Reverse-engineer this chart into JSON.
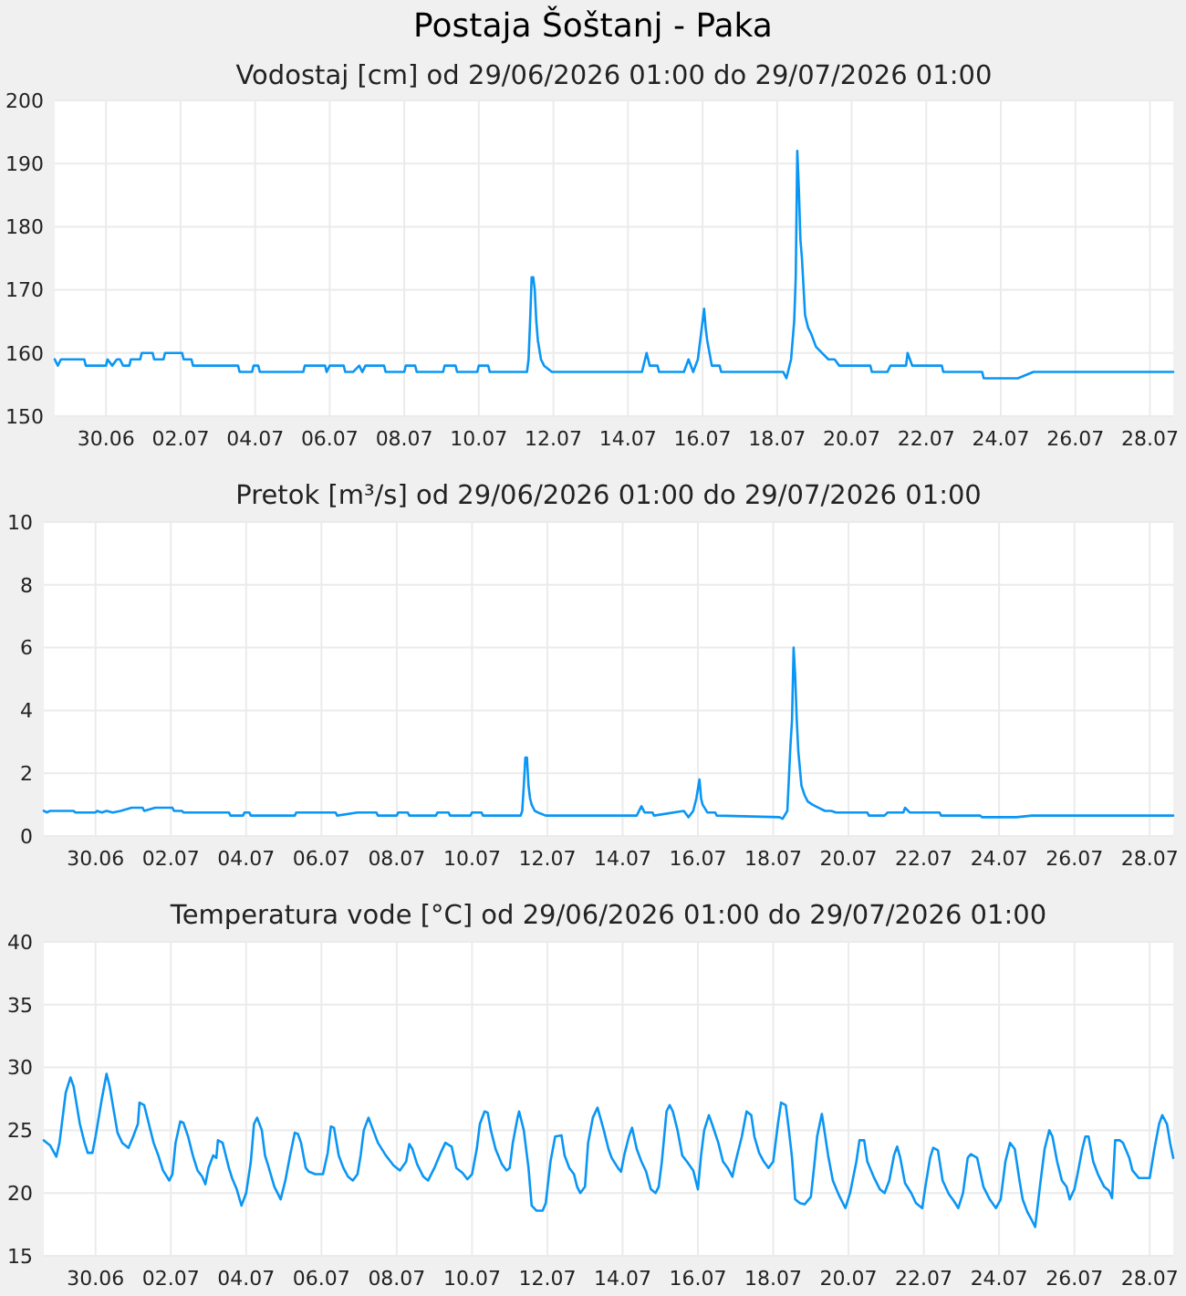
{
  "chart_data": [
    {
      "type": "line",
      "title": "Postaja Šoštanj - Paka",
      "subtitle": "Vodostaj [cm] od 29/06/2026 01:00 do 29/07/2026 01:00",
      "grid": true,
      "xlim": [
        "2026-06-29T01:00",
        "2026-07-29T01:00"
      ],
      "xticks": [
        {
          "value": "2026-06-30T10:00",
          "label": "30.06"
        },
        {
          "value": "2026-07-02T10:00",
          "label": "02.07"
        },
        {
          "value": "2026-07-04T10:00",
          "label": "04.07"
        },
        {
          "value": "2026-07-06T10:00",
          "label": "06.07"
        },
        {
          "value": "2026-07-08T10:00",
          "label": "08.07"
        },
        {
          "value": "2026-07-10T10:00",
          "label": "10.07"
        },
        {
          "value": "2026-07-12T10:00",
          "label": "12.07"
        },
        {
          "value": "2026-07-14T10:00",
          "label": "14.07"
        },
        {
          "value": "2026-07-16T10:00",
          "label": "16.07"
        },
        {
          "value": "2026-07-18T10:00",
          "label": "18.07"
        },
        {
          "value": "2026-07-20T10:00",
          "label": "20.07"
        },
        {
          "value": "2026-07-22T10:00",
          "label": "22.07"
        },
        {
          "value": "2026-07-24T10:00",
          "label": "24.07"
        },
        {
          "value": "2026-07-26T10:00",
          "label": "26.07"
        },
        {
          "value": "2026-07-28T10:00",
          "label": "28.07"
        }
      ],
      "ylim": [
        150,
        200
      ],
      "yticks": [
        150,
        160,
        170,
        180,
        190,
        200
      ],
      "x": [
        "2026-06-29T01:00",
        "2026-06-29T03:00",
        "2026-06-29T05:00",
        "2026-06-29T20:00",
        "2026-06-29T21:00",
        "2026-06-30T10:00",
        "2026-06-30T11:00",
        "2026-06-30T14:00",
        "2026-06-30T17:00",
        "2026-06-30T19:00",
        "2026-06-30T21:00",
        "2026-07-01T01:00",
        "2026-07-01T02:00",
        "2026-07-01T08:00",
        "2026-07-01T09:00",
        "2026-07-01T16:00",
        "2026-07-01T17:00",
        "2026-07-01T23:00",
        "2026-07-02T00:00",
        "2026-07-02T11:00",
        "2026-07-02T12:00",
        "2026-07-02T17:00",
        "2026-07-02T18:00",
        "2026-07-03T23:00",
        "2026-07-04T00:00",
        "2026-07-04T08:00",
        "2026-07-04T09:00",
        "2026-07-04T12:00",
        "2026-07-04T13:00",
        "2026-07-05T17:00",
        "2026-07-05T18:00",
        "2026-07-06T07:00",
        "2026-07-06T08:00",
        "2026-07-06T10:00",
        "2026-07-06T19:00",
        "2026-07-06T20:00",
        "2026-07-07T01:00",
        "2026-07-07T05:00",
        "2026-07-07T07:00",
        "2026-07-07T09:00",
        "2026-07-07T21:00",
        "2026-07-07T22:00",
        "2026-07-08T10:00",
        "2026-07-08T11:00",
        "2026-07-08T17:00",
        "2026-07-08T18:00",
        "2026-07-09T11:00",
        "2026-07-09T12:00",
        "2026-07-09T19:00",
        "2026-07-09T20:00",
        "2026-07-10T09:00",
        "2026-07-10T10:00",
        "2026-07-10T16:00",
        "2026-07-10T17:00",
        "2026-07-11T17:00",
        "2026-07-11T18:00",
        "2026-07-11T19:00",
        "2026-07-11T20:00",
        "2026-07-11T21:00",
        "2026-07-11T22:00",
        "2026-07-11T23:00",
        "2026-07-12T00:00",
        "2026-07-12T02:00",
        "2026-07-12T04:00",
        "2026-07-12T09:00",
        "2026-07-14T19:00",
        "2026-07-14T20:00",
        "2026-07-14T22:00",
        "2026-07-15T00:00",
        "2026-07-15T05:00",
        "2026-07-15T06:00",
        "2026-07-15T22:00",
        "2026-07-16T01:00",
        "2026-07-16T04:00",
        "2026-07-16T07:00",
        "2026-07-16T09:00",
        "2026-07-16T11:00",
        "2026-07-16T12:00",
        "2026-07-16T13:00",
        "2026-07-16T16:00",
        "2026-07-16T21:00",
        "2026-07-16T22:00",
        "2026-07-18T14:00",
        "2026-07-18T16:00",
        "2026-07-18T19:00",
        "2026-07-18T21:00",
        "2026-07-18T22:00",
        "2026-07-18T23:00",
        "2026-07-19T00:00",
        "2026-07-19T01:00",
        "2026-07-19T02:00",
        "2026-07-19T04:00",
        "2026-07-19T06:00",
        "2026-07-19T08:00",
        "2026-07-19T11:00",
        "2026-07-19T15:00",
        "2026-07-19T19:00",
        "2026-07-19T23:00",
        "2026-07-20T02:00",
        "2026-07-20T22:00",
        "2026-07-20T23:00",
        "2026-07-21T09:00",
        "2026-07-21T11:00",
        "2026-07-21T21:00",
        "2026-07-21T22:00",
        "2026-07-22T01:00",
        "2026-07-22T20:00",
        "2026-07-22T21:00",
        "2026-07-23T22:00",
        "2026-07-23T23:00",
        "2026-07-24T21:00",
        "2026-07-25T07:00",
        "2026-07-29T01:00"
      ],
      "series": [
        {
          "color": "#0a96f5",
          "values": [
            159,
            158,
            159,
            159,
            158,
            158,
            159,
            158,
            159,
            159,
            158,
            158,
            159,
            159,
            160,
            160,
            159,
            159,
            160,
            160,
            159,
            159,
            158,
            158,
            157,
            157,
            158,
            158,
            157,
            157,
            158,
            158,
            157,
            158,
            158,
            157,
            157,
            158,
            157,
            158,
            158,
            157,
            157,
            158,
            158,
            157,
            157,
            158,
            158,
            157,
            157,
            158,
            158,
            157,
            157,
            159,
            165,
            172,
            172,
            170,
            165,
            162,
            159,
            158,
            157,
            157,
            158,
            160,
            158,
            158,
            157,
            157,
            159,
            157,
            159,
            163,
            167,
            164,
            162,
            158,
            158,
            157,
            157,
            156,
            159,
            165,
            172,
            192,
            186,
            178,
            175,
            166,
            164,
            163,
            161,
            160,
            159,
            159,
            158,
            158,
            157,
            157,
            158,
            158,
            160,
            158,
            158,
            157,
            157,
            156,
            156,
            157,
            157
          ]
        }
      ]
    },
    {
      "type": "line",
      "title": "Pretok [m³/s] od 29/06/2026 01:00 do 29/07/2026 01:00",
      "grid": true,
      "xlim": [
        "2026-06-29T01:00",
        "2026-07-29T01:00"
      ],
      "xticks": [
        {
          "value": "2026-06-30T10:00",
          "label": "30.06"
        },
        {
          "value": "2026-07-02T10:00",
          "label": "02.07"
        },
        {
          "value": "2026-07-04T10:00",
          "label": "04.07"
        },
        {
          "value": "2026-07-06T10:00",
          "label": "06.07"
        },
        {
          "value": "2026-07-08T10:00",
          "label": "08.07"
        },
        {
          "value": "2026-07-10T10:00",
          "label": "10.07"
        },
        {
          "value": "2026-07-12T10:00",
          "label": "12.07"
        },
        {
          "value": "2026-07-14T10:00",
          "label": "14.07"
        },
        {
          "value": "2026-07-16T10:00",
          "label": "16.07"
        },
        {
          "value": "2026-07-18T10:00",
          "label": "18.07"
        },
        {
          "value": "2026-07-20T10:00",
          "label": "20.07"
        },
        {
          "value": "2026-07-22T10:00",
          "label": "22.07"
        },
        {
          "value": "2026-07-24T10:00",
          "label": "24.07"
        },
        {
          "value": "2026-07-26T10:00",
          "label": "26.07"
        },
        {
          "value": "2026-07-28T10:00",
          "label": "28.07"
        }
      ],
      "ylim": [
        0,
        10
      ],
      "yticks": [
        0,
        2,
        4,
        6,
        8,
        10
      ],
      "x": [
        "2026-06-29T01:00",
        "2026-06-29T03:00",
        "2026-06-29T05:00",
        "2026-06-29T20:00",
        "2026-06-29T21:00",
        "2026-06-30T10:00",
        "2026-06-30T11:00",
        "2026-06-30T14:00",
        "2026-06-30T17:00",
        "2026-06-30T21:00",
        "2026-07-01T02:00",
        "2026-07-01T09:00",
        "2026-07-01T16:00",
        "2026-07-01T17:00",
        "2026-07-02T00:00",
        "2026-07-02T11:00",
        "2026-07-02T12:00",
        "2026-07-02T17:00",
        "2026-07-02T18:00",
        "2026-07-03T23:00",
        "2026-07-04T00:00",
        "2026-07-04T08:00",
        "2026-07-04T09:00",
        "2026-07-04T12:00",
        "2026-07-04T13:00",
        "2026-07-05T17:00",
        "2026-07-05T18:00",
        "2026-07-06T19:00",
        "2026-07-06T20:00",
        "2026-07-07T09:00",
        "2026-07-07T21:00",
        "2026-07-07T22:00",
        "2026-07-08T10:00",
        "2026-07-08T11:00",
        "2026-07-08T17:00",
        "2026-07-08T18:00",
        "2026-07-09T11:00",
        "2026-07-09T12:00",
        "2026-07-09T19:00",
        "2026-07-09T20:00",
        "2026-07-10T09:00",
        "2026-07-10T10:00",
        "2026-07-10T16:00",
        "2026-07-10T17:00",
        "2026-07-11T17:00",
        "2026-07-11T18:00",
        "2026-07-11T19:00",
        "2026-07-11T20:00",
        "2026-07-11T21:00",
        "2026-07-11T22:00",
        "2026-07-11T23:00",
        "2026-07-12T00:00",
        "2026-07-12T02:00",
        "2026-07-12T04:00",
        "2026-07-12T09:00",
        "2026-07-14T19:00",
        "2026-07-14T22:00",
        "2026-07-15T00:00",
        "2026-07-15T05:00",
        "2026-07-15T06:00",
        "2026-07-16T01:00",
        "2026-07-16T04:00",
        "2026-07-16T07:00",
        "2026-07-16T09:00",
        "2026-07-16T11:00",
        "2026-07-16T12:00",
        "2026-07-16T13:00",
        "2026-07-16T16:00",
        "2026-07-16T21:00",
        "2026-07-16T22:00",
        "2026-07-18T14:00",
        "2026-07-18T16:00",
        "2026-07-18T19:00",
        "2026-07-18T21:00",
        "2026-07-18T22:00",
        "2026-07-18T23:00",
        "2026-07-19T00:00",
        "2026-07-19T01:00",
        "2026-07-19T02:00",
        "2026-07-19T04:00",
        "2026-07-19T06:00",
        "2026-07-19T08:00",
        "2026-07-19T11:00",
        "2026-07-19T15:00",
        "2026-07-19T19:00",
        "2026-07-19T23:00",
        "2026-07-20T02:00",
        "2026-07-20T22:00",
        "2026-07-20T23:00",
        "2026-07-21T09:00",
        "2026-07-21T11:00",
        "2026-07-21T21:00",
        "2026-07-21T22:00",
        "2026-07-22T01:00",
        "2026-07-22T20:00",
        "2026-07-22T21:00",
        "2026-07-23T22:00",
        "2026-07-23T23:00",
        "2026-07-24T21:00",
        "2026-07-25T07:00",
        "2026-07-29T01:00"
      ],
      "series": [
        {
          "color": "#0a96f5",
          "values": [
            0.8,
            0.75,
            0.8,
            0.8,
            0.75,
            0.75,
            0.8,
            0.75,
            0.8,
            0.75,
            0.8,
            0.9,
            0.9,
            0.8,
            0.9,
            0.9,
            0.8,
            0.8,
            0.75,
            0.75,
            0.65,
            0.65,
            0.75,
            0.75,
            0.65,
            0.65,
            0.75,
            0.75,
            0.65,
            0.75,
            0.75,
            0.65,
            0.65,
            0.75,
            0.75,
            0.65,
            0.65,
            0.75,
            0.75,
            0.65,
            0.65,
            0.75,
            0.75,
            0.65,
            0.65,
            0.8,
            1.6,
            2.5,
            2.5,
            1.6,
            1.2,
            1.0,
            0.8,
            0.75,
            0.65,
            0.65,
            0.95,
            0.75,
            0.75,
            0.65,
            0.8,
            0.6,
            0.8,
            1.2,
            1.8,
            1.2,
            1.0,
            0.75,
            0.75,
            0.65,
            0.6,
            0.55,
            0.8,
            2.9,
            3.7,
            6.0,
            5.1,
            3.7,
            2.7,
            1.6,
            1.3,
            1.1,
            1.0,
            0.9,
            0.8,
            0.8,
            0.75,
            0.75,
            0.65,
            0.65,
            0.75,
            0.75,
            0.9,
            0.75,
            0.75,
            0.65,
            0.65,
            0.6,
            0.6,
            0.65,
            0.65
          ]
        }
      ]
    },
    {
      "type": "line",
      "title": "Temperatura vode [°C] od 29/06/2026 01:00 do 29/07/2026 01:00",
      "grid": true,
      "xlim": [
        "2026-06-29T01:00",
        "2026-07-29T01:00"
      ],
      "xticks": [
        {
          "value": "2026-06-30T10:00",
          "label": "30.06"
        },
        {
          "value": "2026-07-02T10:00",
          "label": "02.07"
        },
        {
          "value": "2026-07-04T10:00",
          "label": "04.07"
        },
        {
          "value": "2026-07-06T10:00",
          "label": "06.07"
        },
        {
          "value": "2026-07-08T10:00",
          "label": "08.07"
        },
        {
          "value": "2026-07-10T10:00",
          "label": "10.07"
        },
        {
          "value": "2026-07-12T10:00",
          "label": "12.07"
        },
        {
          "value": "2026-07-14T10:00",
          "label": "14.07"
        },
        {
          "value": "2026-07-16T10:00",
          "label": "16.07"
        },
        {
          "value": "2026-07-18T10:00",
          "label": "18.07"
        },
        {
          "value": "2026-07-20T10:00",
          "label": "20.07"
        },
        {
          "value": "2026-07-22T10:00",
          "label": "22.07"
        },
        {
          "value": "2026-07-24T10:00",
          "label": "24.07"
        },
        {
          "value": "2026-07-26T10:00",
          "label": "26.07"
        },
        {
          "value": "2026-07-28T10:00",
          "label": "28.07"
        }
      ],
      "ylim": [
        15,
        40
      ],
      "yticks": [
        15,
        20,
        25,
        30,
        35,
        40
      ],
      "x": [
        "2026-06-29T01:00",
        "2026-06-29T05:00",
        "2026-06-29T09:00",
        "2026-06-29T11:00",
        "2026-06-29T13:00",
        "2026-06-29T15:00",
        "2026-06-29T18:00",
        "2026-06-29T20:00",
        "2026-06-29T22:00",
        "2026-06-30T00:00",
        "2026-06-30T03:00",
        "2026-06-30T05:00",
        "2026-06-30T08:00",
        "2026-06-30T10:00",
        "2026-06-30T12:00",
        "2026-06-30T14:00",
        "2026-06-30T17:00",
        "2026-06-30T19:00",
        "2026-06-30T21:00",
        "2026-07-01T00:00",
        "2026-07-01T03:00",
        "2026-07-01T07:00",
        "2026-07-01T10:00",
        "2026-07-01T13:00",
        "2026-07-01T14:00",
        "2026-07-01T17:00",
        "2026-07-01T20:00",
        "2026-07-01T23:00",
        "2026-07-02T02:00",
        "2026-07-02T05:00",
        "2026-07-02T09:00",
        "2026-07-02T11:00",
        "2026-07-02T13:00",
        "2026-07-02T16:00",
        "2026-07-02T18:00",
        "2026-07-02T21:00",
        "2026-07-03T00:00",
        "2026-07-03T03:00",
        "2026-07-03T06:00",
        "2026-07-03T08:00",
        "2026-07-03T10:00",
        "2026-07-03T13:00",
        "2026-07-03T15:00",
        "2026-07-03T16:00",
        "2026-07-03T19:00",
        "2026-07-03T23:00",
        "2026-07-04T01:00",
        "2026-07-04T04:00",
        "2026-07-04T07:00",
        "2026-07-04T10:00",
        "2026-07-04T13:00",
        "2026-07-04T15:00",
        "2026-07-04T17:00",
        "2026-07-04T20:00",
        "2026-07-04T22:00",
        "2026-07-05T00:00",
        "2026-07-05T04:00",
        "2026-07-05T06:00",
        "2026-07-05T08:00",
        "2026-07-05T11:00",
        "2026-07-05T14:00",
        "2026-07-05T17:00",
        "2026-07-05T19:00",
        "2026-07-05T21:00",
        "2026-07-06T00:00",
        "2026-07-06T02:00",
        "2026-07-06T06:00",
        "2026-07-06T11:00",
        "2026-07-06T14:00",
        "2026-07-06T16:00",
        "2026-07-06T18:00",
        "2026-07-06T21:00",
        "2026-07-07T00:00",
        "2026-07-07T03:00",
        "2026-07-07T06:00",
        "2026-07-07T09:00",
        "2026-07-07T11:00",
        "2026-07-07T13:00",
        "2026-07-07T16:00",
        "2026-07-07T19:00",
        "2026-07-07T22:00",
        "2026-07-08T03:00",
        "2026-07-08T08:00",
        "2026-07-08T12:00",
        "2026-07-08T16:00",
        "2026-07-08T18:00",
        "2026-07-08T20:00",
        "2026-07-08T23:00",
        "2026-07-09T03:00",
        "2026-07-09T06:00",
        "2026-07-09T10:00",
        "2026-07-09T14:00",
        "2026-07-09T17:00",
        "2026-07-09T21:00",
        "2026-07-10T00:00",
        "2026-07-10T04:00",
        "2026-07-10T07:00",
        "2026-07-10T10:00",
        "2026-07-10T13:00",
        "2026-07-10T15:00",
        "2026-07-10T18:00",
        "2026-07-10T20:00",
        "2026-07-10T22:00",
        "2026-07-11T01:00",
        "2026-07-11T05:00",
        "2026-07-11T08:00",
        "2026-07-11T10:00",
        "2026-07-11T12:00",
        "2026-07-11T15:00",
        "2026-07-11T16:00",
        "2026-07-11T19:00",
        "2026-07-11T20:00",
        "2026-07-11T22:00",
        "2026-07-12T00:00",
        "2026-07-12T03:00",
        "2026-07-12T07:00",
        "2026-07-12T09:00",
        "2026-07-12T12:00",
        "2026-07-12T15:00",
        "2026-07-12T19:00",
        "2026-07-12T21:00",
        "2026-07-13T00:00",
        "2026-07-13T03:00",
        "2026-07-13T05:00",
        "2026-07-13T07:00",
        "2026-07-13T10:00",
        "2026-07-13T12:00",
        "2026-07-13T15:00",
        "2026-07-13T18:00",
        "2026-07-13T22:00",
        "2026-07-14T01:00",
        "2026-07-14T03:00",
        "2026-07-14T07:00",
        "2026-07-14T09:00",
        "2026-07-14T11:00",
        "2026-07-14T14:00",
        "2026-07-14T16:00",
        "2026-07-14T19:00",
        "2026-07-14T22:00",
        "2026-07-15T01:00",
        "2026-07-15T04:00",
        "2026-07-15T07:00",
        "2026-07-15T09:00",
        "2026-07-15T11:00",
        "2026-07-15T14:00",
        "2026-07-15T16:00",
        "2026-07-15T18:00",
        "2026-07-15T21:00",
        "2026-07-16T00:00",
        "2026-07-16T03:00",
        "2026-07-16T07:00",
        "2026-07-16T10:00",
        "2026-07-16T12:00",
        "2026-07-16T14:00",
        "2026-07-16T17:00",
        "2026-07-16T19:00",
        "2026-07-16T23:00",
        "2026-07-17T02:00",
        "2026-07-17T05:00",
        "2026-07-17T08:00",
        "2026-07-17T10:00",
        "2026-07-17T14:00",
        "2026-07-17T17:00",
        "2026-07-17T20:00",
        "2026-07-17T22:00",
        "2026-07-18T01:00",
        "2026-07-18T04:00",
        "2026-07-18T07:00",
        "2026-07-18T10:00",
        "2026-07-18T13:00",
        "2026-07-18T15:00",
        "2026-07-18T18:00",
        "2026-07-18T20:00",
        "2026-07-18T22:00",
        "2026-07-19T00:00",
        "2026-07-19T03:00",
        "2026-07-19T06:00",
        "2026-07-19T10:00",
        "2026-07-19T12:00",
        "2026-07-19T14:00",
        "2026-07-19T17:00",
        "2026-07-19T18:00",
        "2026-07-19T21:00",
        "2026-07-20T00:00",
        "2026-07-20T04:00",
        "2026-07-20T08:00",
        "2026-07-20T11:00",
        "2026-07-20T15:00",
        "2026-07-20T17:00",
        "2026-07-20T20:00",
        "2026-07-20T22:00",
        "2026-07-21T02:00",
        "2026-07-21T06:00",
        "2026-07-21T09:00",
        "2026-07-21T12:00",
        "2026-07-21T15:00",
        "2026-07-21T17:00",
        "2026-07-21T19:00",
        "2026-07-21T22:00",
        "2026-07-22T02:00",
        "2026-07-22T05:00",
        "2026-07-22T09:00",
        "2026-07-22T11:00",
        "2026-07-22T14:00",
        "2026-07-22T16:00",
        "2026-07-22T19:00",
        "2026-07-22T22:00",
        "2026-07-23T02:00",
        "2026-07-23T05:00",
        "2026-07-23T08:00",
        "2026-07-23T11:00",
        "2026-07-23T14:00",
        "2026-07-23T16:00",
        "2026-07-23T20:00",
        "2026-07-24T00:00",
        "2026-07-24T04:00",
        "2026-07-24T08:00",
        "2026-07-24T11:00",
        "2026-07-24T14:00",
        "2026-07-24T17:00",
        "2026-07-24T20:00",
        "2026-07-24T23:00",
        "2026-07-25T01:00",
        "2026-07-25T04:00",
        "2026-07-25T07:00",
        "2026-07-25T09:00",
        "2026-07-25T12:00",
        "2026-07-25T15:00",
        "2026-07-25T18:00",
        "2026-07-25T20:00",
        "2026-07-25T23:00",
        "2026-07-26T02:00",
        "2026-07-26T05:00",
        "2026-07-26T07:00",
        "2026-07-26T10:00",
        "2026-07-26T12:00",
        "2026-07-26T15:00",
        "2026-07-26T17:00",
        "2026-07-26T19:00",
        "2026-07-26T22:00",
        "2026-07-27T01:00",
        "2026-07-27T05:00",
        "2026-07-27T08:00",
        "2026-07-27T10:00",
        "2026-07-27T12:00",
        "2026-07-27T15:00",
        "2026-07-27T17:00",
        "2026-07-27T21:00",
        "2026-07-27T23:00",
        "2026-07-28T03:00",
        "2026-07-28T07:00",
        "2026-07-28T10:00",
        "2026-07-28T13:00",
        "2026-07-28T16:00",
        "2026-07-28T18:00",
        "2026-07-28T21:00",
        "2026-07-28T23:00",
        "2026-07-29T01:00"
      ],
      "series": [
        {
          "color": "#0a96f5",
          "values": [
            24.2,
            23.8,
            22.9,
            24,
            26,
            28,
            29.2,
            28.5,
            27,
            25.5,
            24,
            23.2,
            23.2,
            24.5,
            26,
            27.5,
            29.5,
            28.5,
            27,
            24.8,
            24,
            23.6,
            24.5,
            25.5,
            27.2,
            27,
            25.5,
            24,
            23,
            21.8,
            21,
            21.5,
            24,
            25.7,
            25.6,
            24.5,
            23,
            21.8,
            21.3,
            20.7,
            22,
            23,
            22.8,
            24.2,
            24,
            22,
            21.2,
            20.3,
            19,
            20,
            22.5,
            25.5,
            26,
            25,
            23,
            22.2,
            20.5,
            20,
            19.5,
            21,
            23,
            24.8,
            24.7,
            24,
            22,
            21.7,
            21.5,
            21.5,
            23.2,
            25.3,
            25.2,
            23,
            22,
            21.3,
            21,
            21.5,
            23,
            25,
            26,
            25,
            24,
            23,
            22.2,
            21.8,
            22.5,
            23.9,
            23.5,
            22.3,
            21.3,
            21,
            22,
            23.2,
            24,
            23.7,
            22,
            21.6,
            21.1,
            21.5,
            23.5,
            25.5,
            26.5,
            26.4,
            25,
            23.5,
            22.3,
            21.8,
            22,
            24,
            26,
            26.5,
            25,
            24,
            22,
            19,
            18.6,
            18.6,
            19.2,
            22.5,
            24.5,
            24.6,
            23,
            22,
            21.5,
            20.5,
            20,
            20.5,
            24,
            26,
            26.8,
            25,
            23.5,
            22.8,
            22,
            21.7,
            23,
            24.5,
            25.2,
            23.5,
            22.5,
            21.7,
            20.3,
            20,
            20.5,
            22.5,
            26.5,
            27,
            26.5,
            25,
            23,
            22.5,
            21.8,
            20.3,
            23,
            25,
            26.2,
            25.5,
            24,
            22.5,
            22,
            21.3,
            22.5,
            24.5,
            26.5,
            26.2,
            24.5,
            23.2,
            22.5,
            22,
            22.5,
            25.5,
            27.2,
            27,
            25,
            22.8,
            19.5,
            19.2,
            19.1,
            19.7,
            22,
            24.5,
            26.3,
            25.5,
            23,
            21,
            19.8,
            18.8,
            20,
            22.5,
            24.2,
            24.2,
            22.5,
            21.3,
            20.3,
            20,
            21,
            23,
            23.7,
            22.8,
            20.8,
            20,
            19.2,
            18.8,
            20.5,
            22.8,
            23.6,
            23.4,
            21,
            19.9,
            19.4,
            18.8,
            20,
            22.8,
            23.1,
            22.8,
            20.5,
            19.5,
            18.8,
            19.5,
            22.5,
            24,
            23.5,
            21,
            19.5,
            18.5,
            17.8,
            17.3,
            20.5,
            23.5,
            25,
            24.5,
            22.5,
            21,
            20.5,
            19.5,
            20.3,
            21.5,
            23.5,
            24.5,
            24.5,
            22.5,
            21.5,
            20.5,
            20.2,
            19.6,
            24.2,
            24.2,
            24,
            22.8,
            21.8,
            21.2,
            21.2,
            21.2,
            23.5,
            25.5,
            26.2,
            25.5,
            24,
            22.8
          ]
        }
      ]
    }
  ]
}
